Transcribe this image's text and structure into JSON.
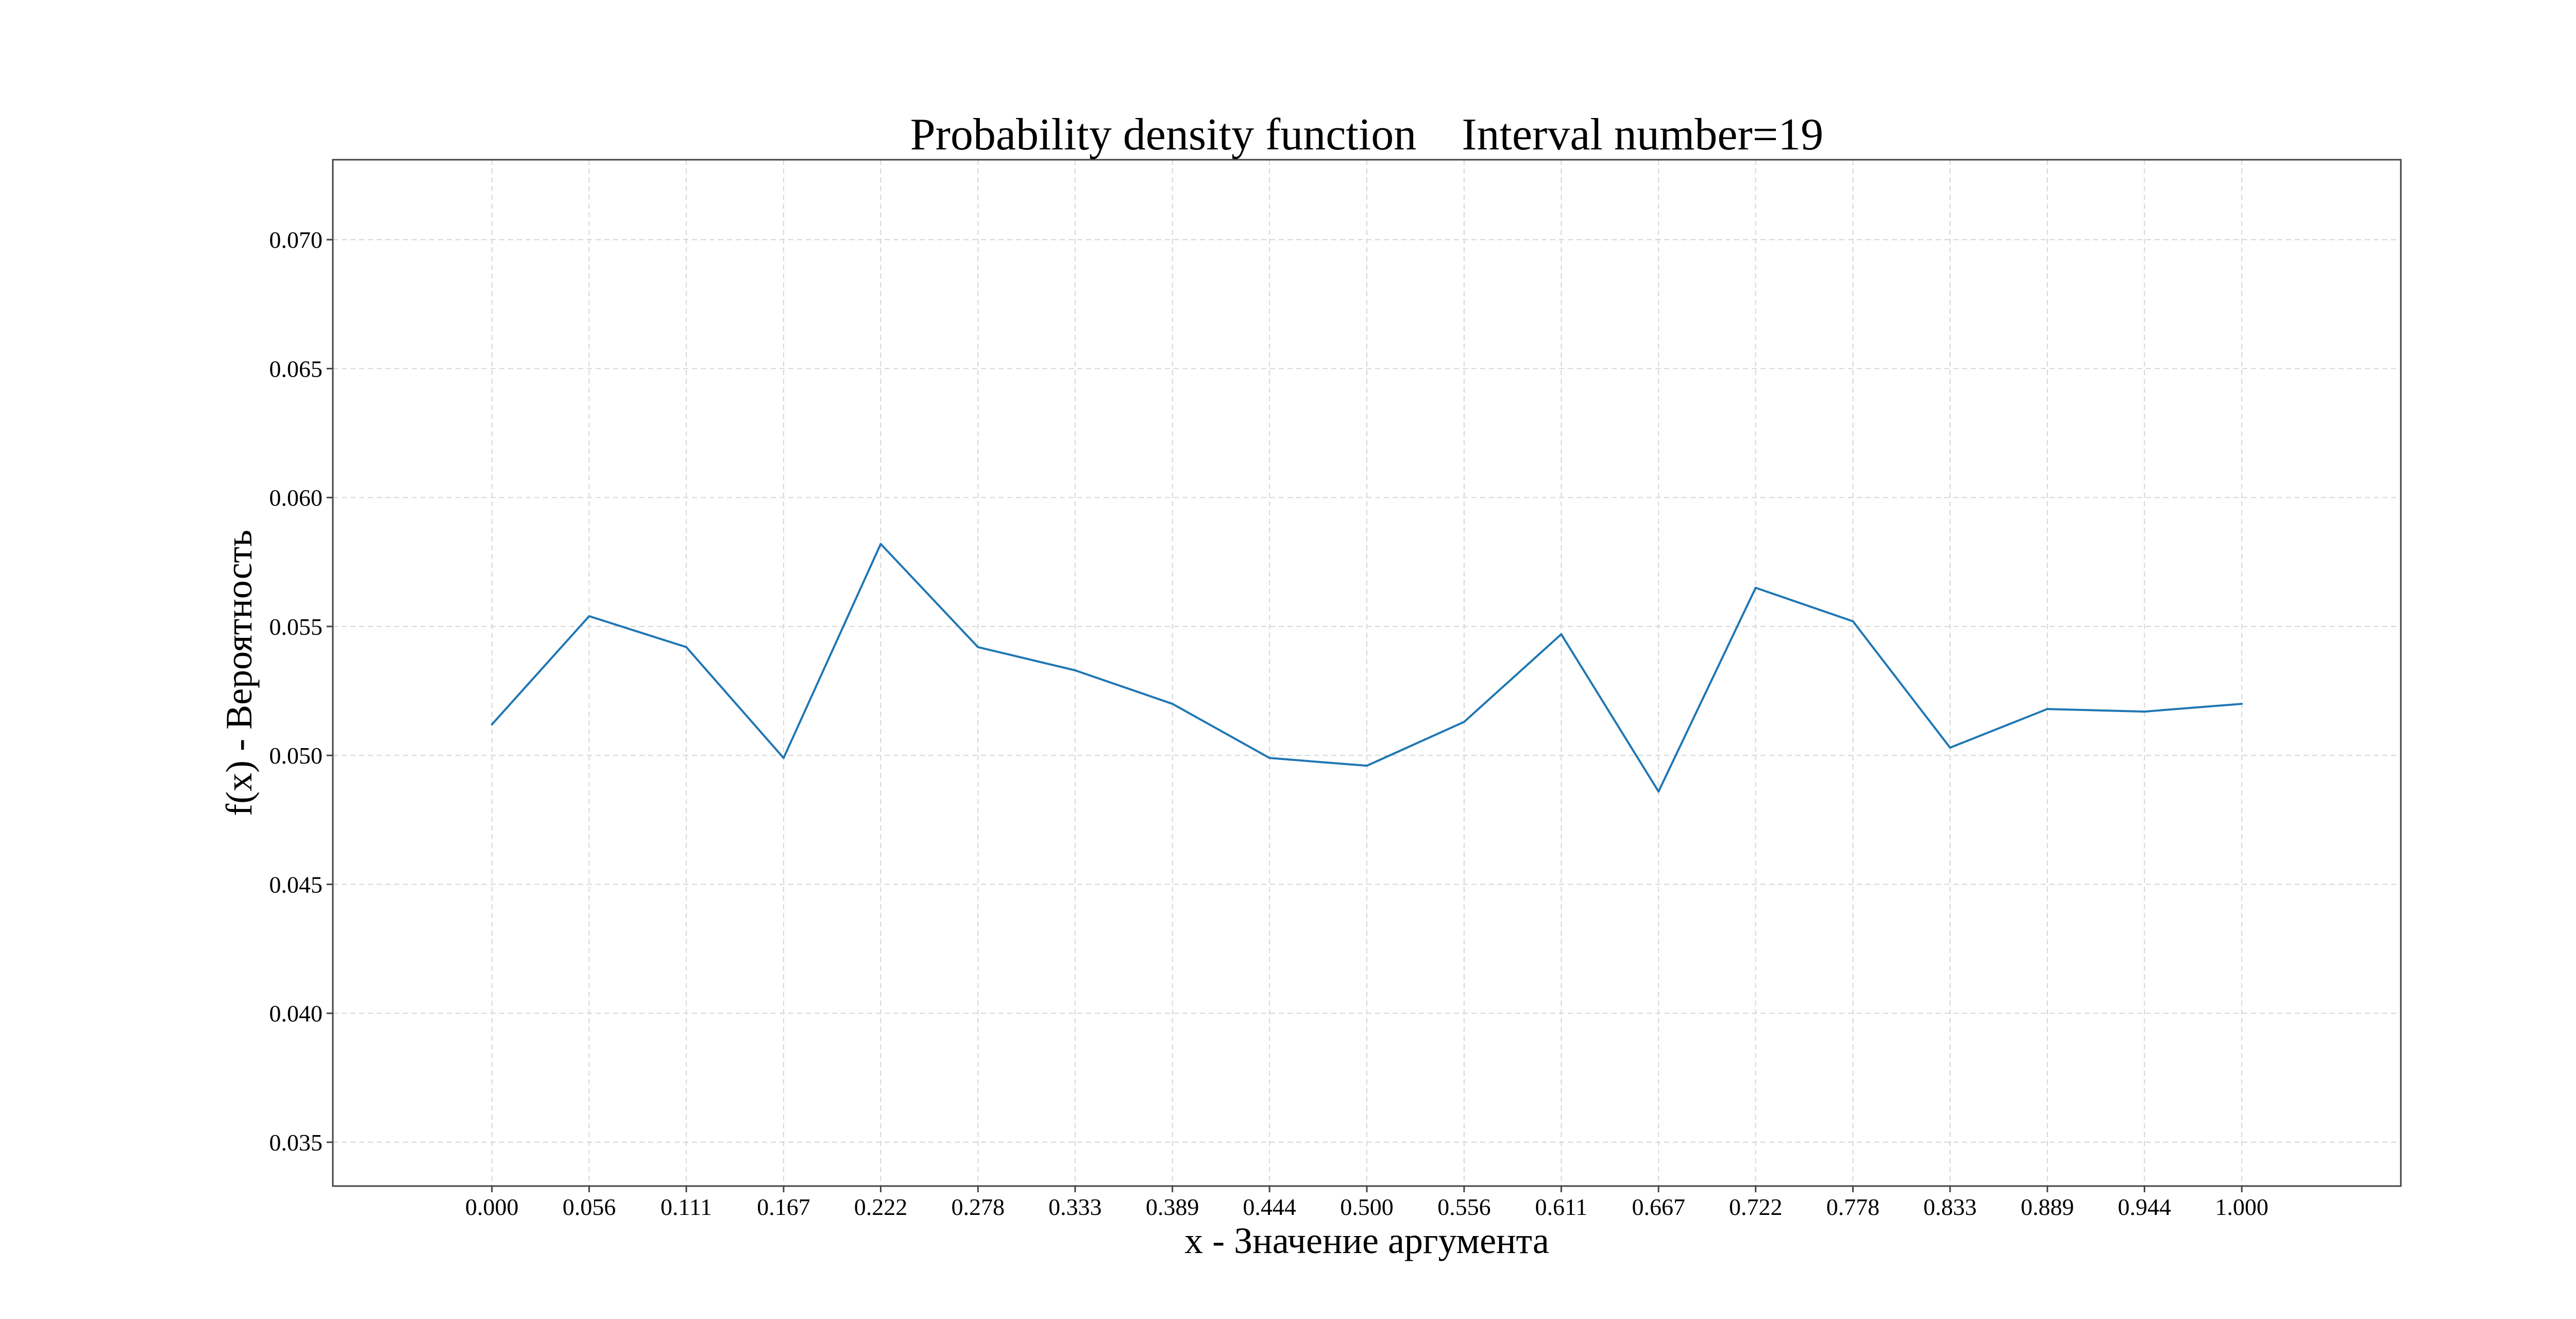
{
  "chart_data": {
    "type": "line",
    "title": "Probability density function    Interval number=19",
    "xlabel": "x - Значение аргумента",
    "ylabel": "f(x) - Вероятность",
    "xlim": [
      -0.0909,
      1.0909
    ],
    "ylim": [
      0.0333,
      0.0731
    ],
    "grid": true,
    "x_tick_labels": [
      "0.000",
      "0.056",
      "0.111",
      "0.167",
      "0.222",
      "0.278",
      "0.333",
      "0.389",
      "0.444",
      "0.500",
      "0.556",
      "0.611",
      "0.667",
      "0.722",
      "0.778",
      "0.833",
      "0.889",
      "0.944",
      "1.000"
    ],
    "y_ticks": [
      0.035,
      0.04,
      0.045,
      0.05,
      0.055,
      0.06,
      0.065,
      0.07
    ],
    "y_tick_labels": [
      "0.035",
      "0.040",
      "0.045",
      "0.050",
      "0.055",
      "0.060",
      "0.065",
      "0.070"
    ],
    "x": [
      0.0,
      0.0556,
      0.1111,
      0.1667,
      0.2222,
      0.2778,
      0.3333,
      0.3889,
      0.4444,
      0.5,
      0.5556,
      0.6111,
      0.6667,
      0.7222,
      0.7778,
      0.8333,
      0.8889,
      0.9444,
      1.0
    ],
    "series": [
      {
        "color": "#1f77b4",
        "values": [
          0.0512,
          0.0554,
          0.0542,
          0.0499,
          0.0582,
          0.0542,
          0.0533,
          0.052,
          0.0499,
          0.0496,
          0.0513,
          0.0547,
          0.0486,
          0.0565,
          0.0552,
          0.0503,
          0.0518,
          0.0517,
          0.052
        ]
      }
    ]
  }
}
